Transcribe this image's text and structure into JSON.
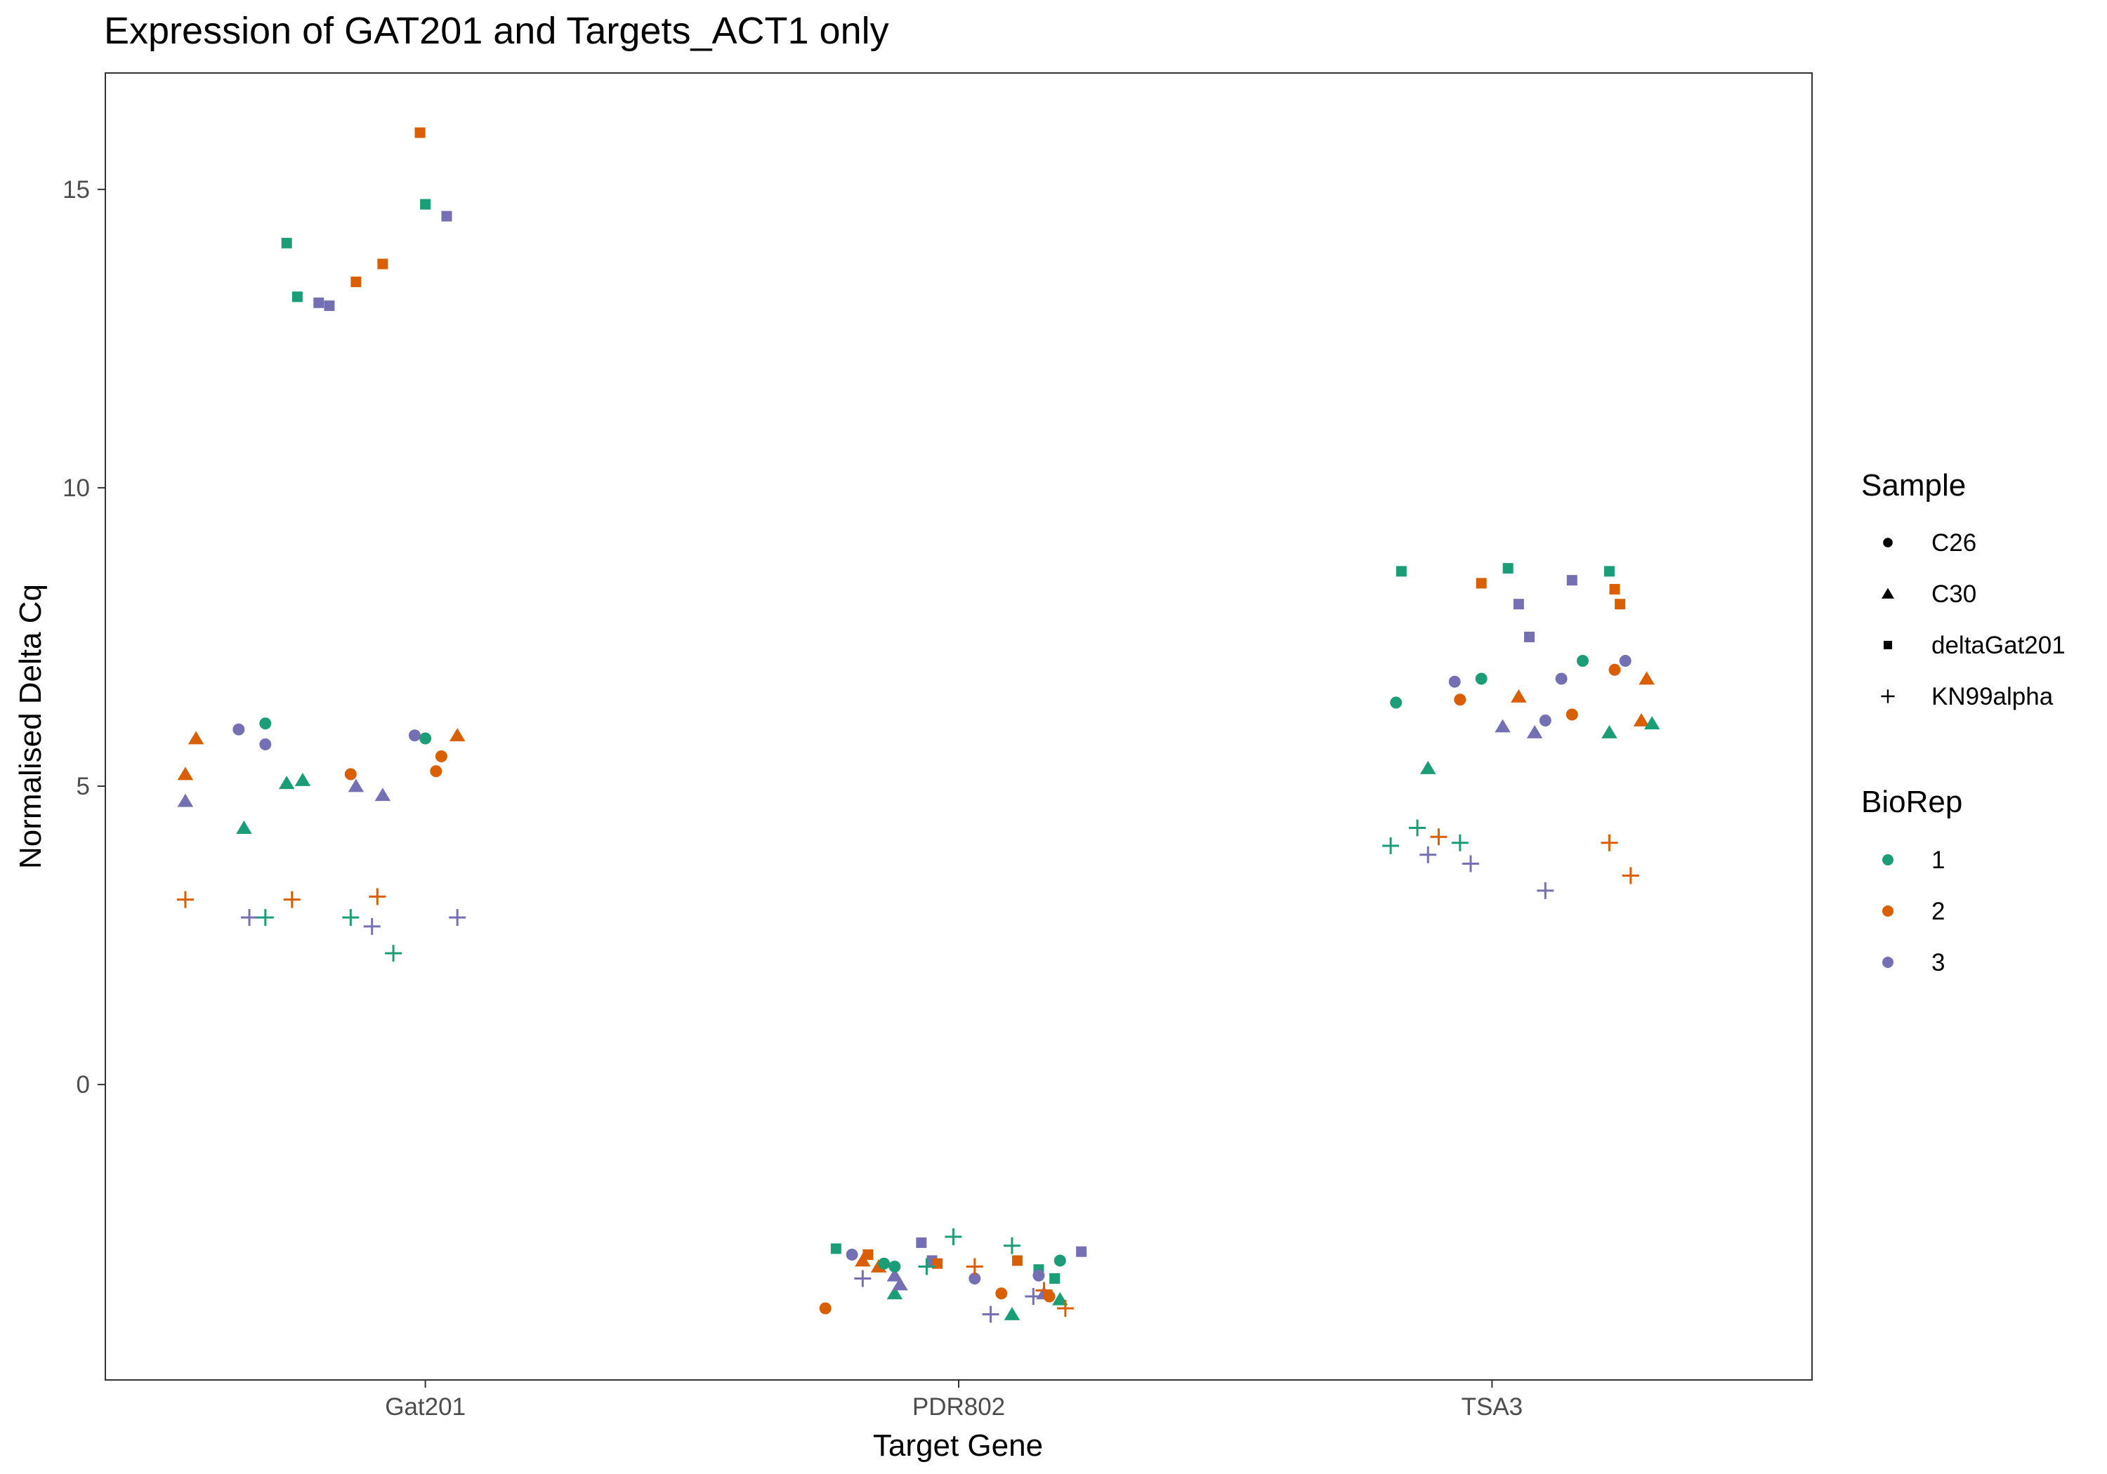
{
  "chart_data": {
    "type": "scatter",
    "title": "Expression of GAT201 and Targets_ACT1 only",
    "xlabel": "Target Gene",
    "ylabel": "Normalised Delta Cq",
    "categories": [
      "Gat201",
      "PDR802",
      "TSA3"
    ],
    "ylim": [
      -4.95,
      16.95
    ],
    "yticks": [
      0,
      5,
      10,
      15
    ],
    "grid": false,
    "legend_position": "right",
    "legends": [
      {
        "title": "Sample",
        "entries": [
          {
            "label": "C26",
            "shape": "circle"
          },
          {
            "label": "C30",
            "shape": "triangle"
          },
          {
            "label": "deltaGat201",
            "shape": "square"
          },
          {
            "label": "KN99alpha",
            "shape": "plus"
          }
        ]
      },
      {
        "title": "BioRep",
        "entries": [
          {
            "label": "1",
            "color": "#1b9e77"
          },
          {
            "label": "2",
            "color": "#d95f02"
          },
          {
            "label": "3",
            "color": "#7570b3"
          }
        ]
      }
    ],
    "colors": {
      "1": "#1b9e77",
      "2": "#d95f02",
      "3": "#7570b3"
    },
    "points": [
      {
        "x": 0.99,
        "y": 15.95,
        "sample": "deltaGat201",
        "biorep": "2"
      },
      {
        "x": 1.0,
        "y": 14.75,
        "sample": "deltaGat201",
        "biorep": "1"
      },
      {
        "x": 1.04,
        "y": 14.55,
        "sample": "deltaGat201",
        "biorep": "3"
      },
      {
        "x": 0.74,
        "y": 14.1,
        "sample": "deltaGat201",
        "biorep": "1"
      },
      {
        "x": 0.92,
        "y": 13.75,
        "sample": "deltaGat201",
        "biorep": "2"
      },
      {
        "x": 0.87,
        "y": 13.45,
        "sample": "deltaGat201",
        "biorep": "2"
      },
      {
        "x": 0.76,
        "y": 13.2,
        "sample": "deltaGat201",
        "biorep": "1"
      },
      {
        "x": 0.8,
        "y": 13.1,
        "sample": "deltaGat201",
        "biorep": "3"
      },
      {
        "x": 0.82,
        "y": 13.05,
        "sample": "deltaGat201",
        "biorep": "3"
      },
      {
        "x": 0.57,
        "y": 5.8,
        "sample": "C30",
        "biorep": "2"
      },
      {
        "x": 0.55,
        "y": 5.2,
        "sample": "C30",
        "biorep": "2"
      },
      {
        "x": 0.55,
        "y": 4.75,
        "sample": "C30",
        "biorep": "3"
      },
      {
        "x": 0.66,
        "y": 4.3,
        "sample": "C30",
        "biorep": "1"
      },
      {
        "x": 0.74,
        "y": 5.05,
        "sample": "C30",
        "biorep": "1"
      },
      {
        "x": 0.77,
        "y": 5.1,
        "sample": "C30",
        "biorep": "1"
      },
      {
        "x": 0.87,
        "y": 5.0,
        "sample": "C30",
        "biorep": "3"
      },
      {
        "x": 0.92,
        "y": 4.85,
        "sample": "C30",
        "biorep": "3"
      },
      {
        "x": 1.06,
        "y": 5.85,
        "sample": "C30",
        "biorep": "2"
      },
      {
        "x": 0.65,
        "y": 5.95,
        "sample": "C26",
        "biorep": "3"
      },
      {
        "x": 0.7,
        "y": 6.05,
        "sample": "C26",
        "biorep": "1"
      },
      {
        "x": 0.7,
        "y": 5.7,
        "sample": "C26",
        "biorep": "3"
      },
      {
        "x": 0.86,
        "y": 5.2,
        "sample": "C26",
        "biorep": "2"
      },
      {
        "x": 0.98,
        "y": 5.85,
        "sample": "C26",
        "biorep": "3"
      },
      {
        "x": 1.0,
        "y": 5.8,
        "sample": "C26",
        "biorep": "1"
      },
      {
        "x": 1.03,
        "y": 5.5,
        "sample": "C26",
        "biorep": "2"
      },
      {
        "x": 1.02,
        "y": 5.25,
        "sample": "C26",
        "biorep": "2"
      },
      {
        "x": 0.55,
        "y": 3.1,
        "sample": "KN99alpha",
        "biorep": "2"
      },
      {
        "x": 0.67,
        "y": 2.8,
        "sample": "KN99alpha",
        "biorep": "3"
      },
      {
        "x": 0.7,
        "y": 2.8,
        "sample": "KN99alpha",
        "biorep": "1"
      },
      {
        "x": 0.75,
        "y": 3.1,
        "sample": "KN99alpha",
        "biorep": "2"
      },
      {
        "x": 0.86,
        "y": 2.8,
        "sample": "KN99alpha",
        "biorep": "1"
      },
      {
        "x": 0.91,
        "y": 3.15,
        "sample": "KN99alpha",
        "biorep": "2"
      },
      {
        "x": 0.9,
        "y": 2.65,
        "sample": "KN99alpha",
        "biorep": "3"
      },
      {
        "x": 0.94,
        "y": 2.2,
        "sample": "KN99alpha",
        "biorep": "1"
      },
      {
        "x": 1.06,
        "y": 2.8,
        "sample": "KN99alpha",
        "biorep": "3"
      },
      {
        "x": 1.77,
        "y": -2.75,
        "sample": "deltaGat201",
        "biorep": "1"
      },
      {
        "x": 1.83,
        "y": -2.85,
        "sample": "deltaGat201",
        "biorep": "2"
      },
      {
        "x": 1.95,
        "y": -2.95,
        "sample": "deltaGat201",
        "biorep": "3"
      },
      {
        "x": 1.96,
        "y": -3.0,
        "sample": "deltaGat201",
        "biorep": "2"
      },
      {
        "x": 2.11,
        "y": -2.95,
        "sample": "deltaGat201",
        "biorep": "2"
      },
      {
        "x": 2.15,
        "y": -3.1,
        "sample": "deltaGat201",
        "biorep": "1"
      },
      {
        "x": 2.18,
        "y": -3.25,
        "sample": "deltaGat201",
        "biorep": "1"
      },
      {
        "x": 2.23,
        "y": -2.8,
        "sample": "deltaGat201",
        "biorep": "3"
      },
      {
        "x": 1.93,
        "y": -2.65,
        "sample": "deltaGat201",
        "biorep": "3"
      },
      {
        "x": 1.82,
        "y": -2.95,
        "sample": "C30",
        "biorep": "2"
      },
      {
        "x": 1.85,
        "y": -3.05,
        "sample": "C30",
        "biorep": "2"
      },
      {
        "x": 1.88,
        "y": -3.2,
        "sample": "C30",
        "biorep": "3"
      },
      {
        "x": 1.88,
        "y": -3.5,
        "sample": "C30",
        "biorep": "1"
      },
      {
        "x": 1.89,
        "y": -3.35,
        "sample": "C30",
        "biorep": "3"
      },
      {
        "x": 2.1,
        "y": -3.85,
        "sample": "C30",
        "biorep": "1"
      },
      {
        "x": 2.16,
        "y": -3.5,
        "sample": "C30",
        "biorep": "3"
      },
      {
        "x": 2.19,
        "y": -3.6,
        "sample": "C30",
        "biorep": "1"
      },
      {
        "x": 1.75,
        "y": -3.75,
        "sample": "C26",
        "biorep": "2"
      },
      {
        "x": 1.8,
        "y": -2.85,
        "sample": "C26",
        "biorep": "3"
      },
      {
        "x": 1.86,
        "y": -3.0,
        "sample": "C26",
        "biorep": "1"
      },
      {
        "x": 1.88,
        "y": -3.05,
        "sample": "C26",
        "biorep": "1"
      },
      {
        "x": 2.03,
        "y": -3.25,
        "sample": "C26",
        "biorep": "3"
      },
      {
        "x": 2.08,
        "y": -3.5,
        "sample": "C26",
        "biorep": "2"
      },
      {
        "x": 2.15,
        "y": -3.2,
        "sample": "C26",
        "biorep": "3"
      },
      {
        "x": 2.17,
        "y": -3.55,
        "sample": "C26",
        "biorep": "2"
      },
      {
        "x": 2.19,
        "y": -2.95,
        "sample": "C26",
        "biorep": "1"
      },
      {
        "x": 1.82,
        "y": -3.25,
        "sample": "KN99alpha",
        "biorep": "3"
      },
      {
        "x": 1.94,
        "y": -3.05,
        "sample": "KN99alpha",
        "biorep": "1"
      },
      {
        "x": 1.99,
        "y": -2.55,
        "sample": "KN99alpha",
        "biorep": "1"
      },
      {
        "x": 2.03,
        "y": -3.05,
        "sample": "KN99alpha",
        "biorep": "2"
      },
      {
        "x": 2.06,
        "y": -3.85,
        "sample": "KN99alpha",
        "biorep": "3"
      },
      {
        "x": 2.1,
        "y": -2.7,
        "sample": "KN99alpha",
        "biorep": "1"
      },
      {
        "x": 2.14,
        "y": -3.55,
        "sample": "KN99alpha",
        "biorep": "3"
      },
      {
        "x": 2.16,
        "y": -3.45,
        "sample": "KN99alpha",
        "biorep": "2"
      },
      {
        "x": 2.2,
        "y": -3.75,
        "sample": "KN99alpha",
        "biorep": "2"
      },
      {
        "x": 2.83,
        "y": 8.6,
        "sample": "deltaGat201",
        "biorep": "1"
      },
      {
        "x": 2.98,
        "y": 8.4,
        "sample": "deltaGat201",
        "biorep": "2"
      },
      {
        "x": 3.03,
        "y": 8.65,
        "sample": "deltaGat201",
        "biorep": "1"
      },
      {
        "x": 3.05,
        "y": 8.05,
        "sample": "deltaGat201",
        "biorep": "3"
      },
      {
        "x": 3.07,
        "y": 7.5,
        "sample": "deltaGat201",
        "biorep": "3"
      },
      {
        "x": 3.15,
        "y": 8.45,
        "sample": "deltaGat201",
        "biorep": "3"
      },
      {
        "x": 3.22,
        "y": 8.6,
        "sample": "deltaGat201",
        "biorep": "1"
      },
      {
        "x": 3.23,
        "y": 8.3,
        "sample": "deltaGat201",
        "biorep": "2"
      },
      {
        "x": 3.24,
        "y": 8.05,
        "sample": "deltaGat201",
        "biorep": "2"
      },
      {
        "x": 2.88,
        "y": 5.3,
        "sample": "C30",
        "biorep": "1"
      },
      {
        "x": 3.02,
        "y": 6.0,
        "sample": "C30",
        "biorep": "3"
      },
      {
        "x": 3.05,
        "y": 6.5,
        "sample": "C30",
        "biorep": "2"
      },
      {
        "x": 3.08,
        "y": 5.9,
        "sample": "C30",
        "biorep": "3"
      },
      {
        "x": 3.22,
        "y": 5.9,
        "sample": "C30",
        "biorep": "1"
      },
      {
        "x": 3.29,
        "y": 6.8,
        "sample": "C30",
        "biorep": "2"
      },
      {
        "x": 3.28,
        "y": 6.1,
        "sample": "C30",
        "biorep": "2"
      },
      {
        "x": 3.3,
        "y": 6.05,
        "sample": "C30",
        "biorep": "1"
      },
      {
        "x": 2.82,
        "y": 6.4,
        "sample": "C26",
        "biorep": "1"
      },
      {
        "x": 2.93,
        "y": 6.75,
        "sample": "C26",
        "biorep": "3"
      },
      {
        "x": 2.94,
        "y": 6.45,
        "sample": "C26",
        "biorep": "2"
      },
      {
        "x": 2.98,
        "y": 6.8,
        "sample": "C26",
        "biorep": "1"
      },
      {
        "x": 3.1,
        "y": 6.1,
        "sample": "C26",
        "biorep": "3"
      },
      {
        "x": 3.13,
        "y": 6.8,
        "sample": "C26",
        "biorep": "3"
      },
      {
        "x": 3.15,
        "y": 6.2,
        "sample": "C26",
        "biorep": "2"
      },
      {
        "x": 3.17,
        "y": 7.1,
        "sample": "C26",
        "biorep": "1"
      },
      {
        "x": 3.23,
        "y": 6.95,
        "sample": "C26",
        "biorep": "2"
      },
      {
        "x": 3.25,
        "y": 7.1,
        "sample": "C26",
        "biorep": "3"
      },
      {
        "x": 2.81,
        "y": 4.0,
        "sample": "KN99alpha",
        "biorep": "1"
      },
      {
        "x": 2.86,
        "y": 4.3,
        "sample": "KN99alpha",
        "biorep": "1"
      },
      {
        "x": 2.88,
        "y": 3.85,
        "sample": "KN99alpha",
        "biorep": "3"
      },
      {
        "x": 2.9,
        "y": 4.15,
        "sample": "KN99alpha",
        "biorep": "2"
      },
      {
        "x": 2.94,
        "y": 4.05,
        "sample": "KN99alpha",
        "biorep": "1"
      },
      {
        "x": 2.96,
        "y": 3.7,
        "sample": "KN99alpha",
        "biorep": "3"
      },
      {
        "x": 3.1,
        "y": 3.25,
        "sample": "KN99alpha",
        "biorep": "3"
      },
      {
        "x": 3.22,
        "y": 4.05,
        "sample": "KN99alpha",
        "biorep": "2"
      },
      {
        "x": 3.26,
        "y": 3.5,
        "sample": "KN99alpha",
        "biorep": "2"
      }
    ]
  }
}
